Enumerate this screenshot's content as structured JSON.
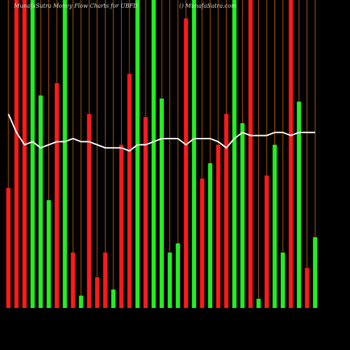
{
  "chart_data": {
    "type": "bar",
    "title": "MunafaSutra  Money Flow  Charts for UBFD",
    "subtitle": "() MunafaSutra.com",
    "ylim": [
      0,
      100
    ],
    "slot_line_color": "#b05a00",
    "values": [
      39,
      100,
      100,
      100,
      69,
      35,
      73,
      100,
      18,
      4,
      63,
      10,
      18,
      6,
      53,
      76,
      100,
      62,
      100,
      68,
      18,
      21,
      94,
      100,
      42,
      47,
      53,
      63,
      100,
      60,
      100,
      3,
      43,
      53,
      18,
      100,
      67,
      13,
      23
    ],
    "colors": [
      "#ff1a1a",
      "#ff1a1a",
      "#ff1a1a",
      "#22ee22",
      "#22ee22",
      "#22ee22",
      "#ff1a1a",
      "#22ee22",
      "#ff1a1a",
      "#22ee22",
      "#ff1a1a",
      "#ff1a1a",
      "#ff1a1a",
      "#22ee22",
      "#ff1a1a",
      "#ff1a1a",
      "#22ee22",
      "#ff1a1a",
      "#22ee22",
      "#22ee22",
      "#22ee22",
      "#22ee22",
      "#ff1a1a",
      "#22ee22",
      "#ff1a1a",
      "#22ee22",
      "#ff1a1a",
      "#ff1a1a",
      "#22ee22",
      "#22ee22",
      "#ff1a1a",
      "#22ee22",
      "#ff1a1a",
      "#22ee22",
      "#22ee22",
      "#ff1a1a",
      "#22ee22",
      "#ff1a1a",
      "#22ee22"
    ],
    "line": {
      "color": "#ffffff",
      "values": [
        63,
        57,
        53,
        54,
        52,
        53,
        54,
        54,
        55,
        54,
        54,
        53,
        52,
        52,
        52,
        51,
        53,
        53,
        54,
        55,
        55,
        55,
        53,
        55,
        55,
        55,
        54,
        52,
        55,
        57,
        56,
        56,
        56,
        57,
        57,
        56,
        57,
        57,
        57
      ]
    }
  }
}
